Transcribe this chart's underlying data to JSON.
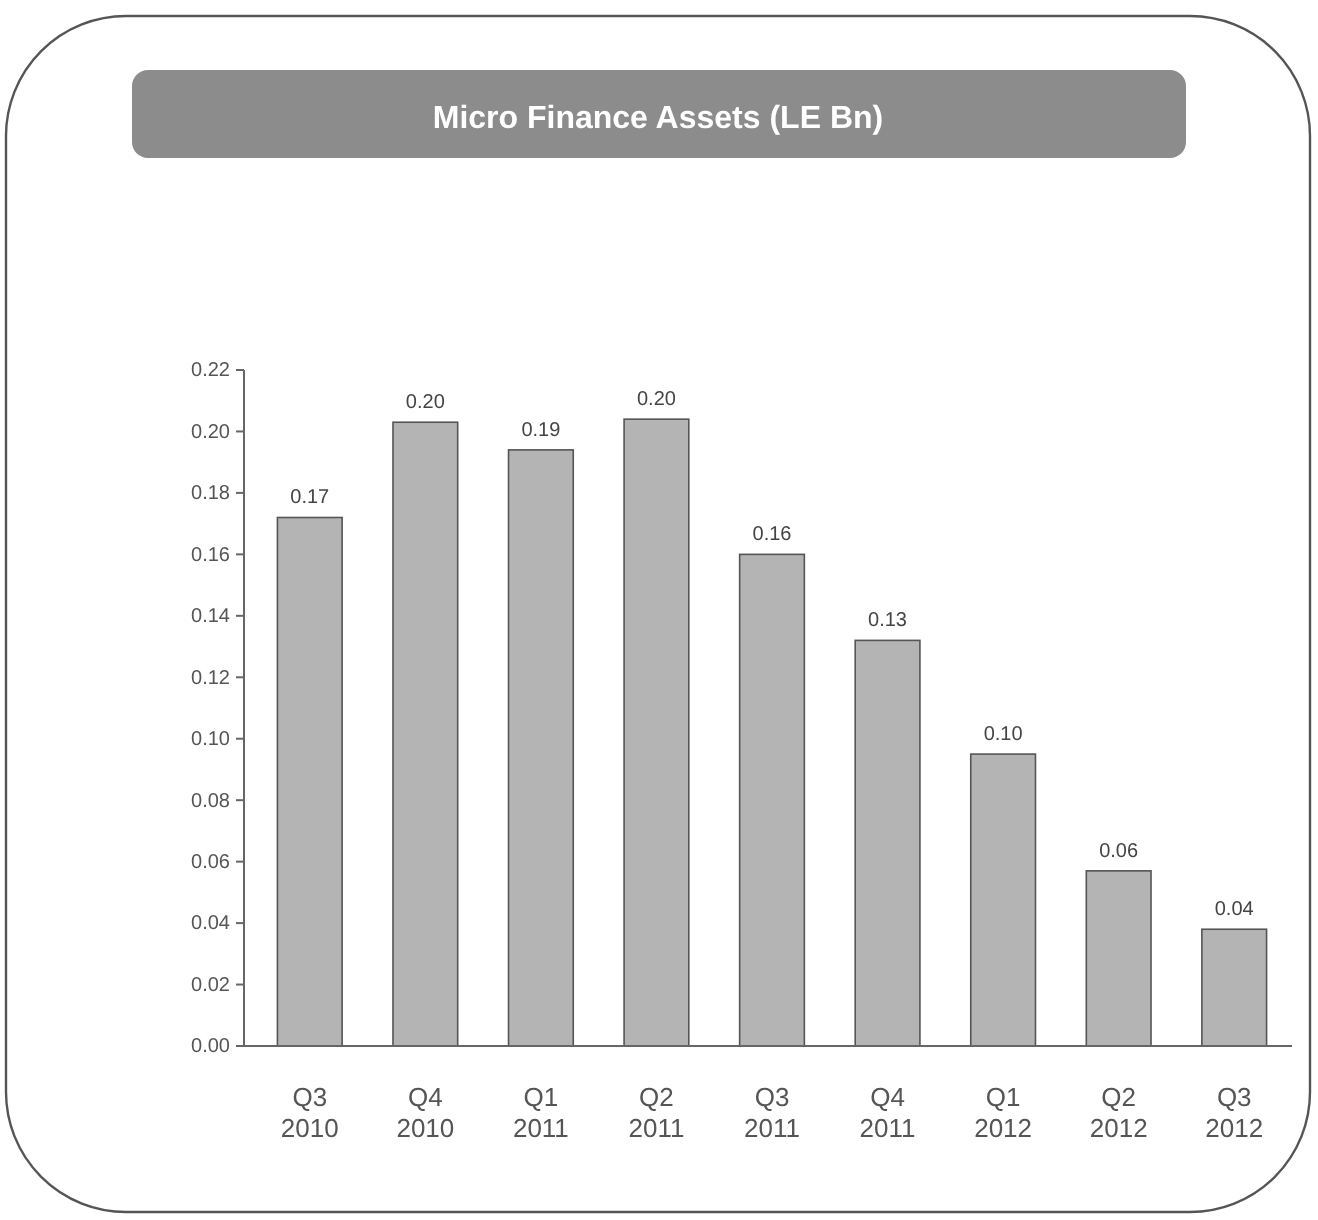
{
  "chart_data": {
    "type": "bar",
    "title": "Micro Finance Assets (LE Bn)",
    "categories": [
      "Q3 2010",
      "Q4 2010",
      "Q1 2011",
      "Q2 2011",
      "Q3 2011",
      "Q4 2011",
      "Q1 2012",
      "Q2 2012",
      "Q3 2012"
    ],
    "values": [
      0.172,
      0.203,
      0.194,
      0.204,
      0.16,
      0.132,
      0.095,
      0.057,
      0.038
    ],
    "value_labels": [
      "0.17",
      "0.20",
      "0.19",
      "0.20",
      "0.16",
      "0.13",
      "0.10",
      "0.06",
      "0.04"
    ],
    "color": "#b4b4b4",
    "ylim": [
      0,
      0.22
    ],
    "yticks": [
      {
        "value": 0,
        "label": "0.00"
      },
      {
        "value": 0.02,
        "label": "0.02"
      },
      {
        "value": 0.04,
        "label": "0.04"
      },
      {
        "value": 0.06,
        "label": "0.06"
      },
      {
        "value": 0.08,
        "label": "0.08"
      },
      {
        "value": 0.1,
        "label": "0.10"
      },
      {
        "value": 0.12,
        "label": "0.12"
      },
      {
        "value": 0.14,
        "label": "0.14"
      },
      {
        "value": 0.16,
        "label": "0.16"
      },
      {
        "value": 0.18,
        "label": "0.18"
      },
      {
        "value": 0.2,
        "label": "0.20"
      },
      {
        "value": 0.22,
        "label": "0.22"
      }
    ],
    "grid": false
  }
}
